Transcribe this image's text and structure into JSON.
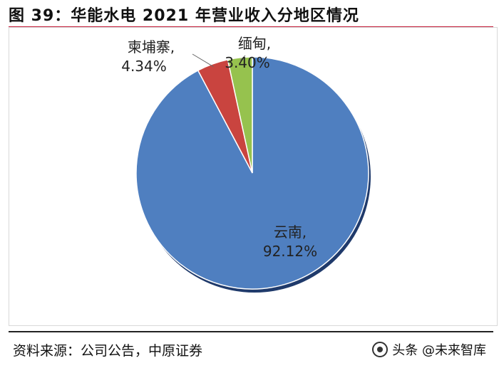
{
  "figure": {
    "title": "图 39：华能水电 2021 年营业收入分地区情况",
    "source": "资料来源：公司公告，中原证券",
    "watermark": "头条 @未来智库"
  },
  "colors": {
    "title_rule": "#c41e3a",
    "yunnan": "#4f7fc0",
    "cambodia": "#c9443f",
    "myanmar": "#96c24e"
  },
  "chart_data": {
    "type": "pie",
    "title": "图 39：华能水电 2021 年营业收入分地区情况",
    "unit": "%",
    "slices": [
      {
        "label": "云南",
        "value": 92.12,
        "value_label": "92.12%",
        "color": "#4f7fc0"
      },
      {
        "label": "柬埔寨",
        "value": 4.34,
        "value_label": "4.34%",
        "color": "#c9443f"
      },
      {
        "label": "缅甸",
        "value": 3.4,
        "value_label": "3.40%",
        "color": "#96c24e"
      }
    ],
    "legend": "none",
    "labels": "outside-with-leader-lines"
  }
}
